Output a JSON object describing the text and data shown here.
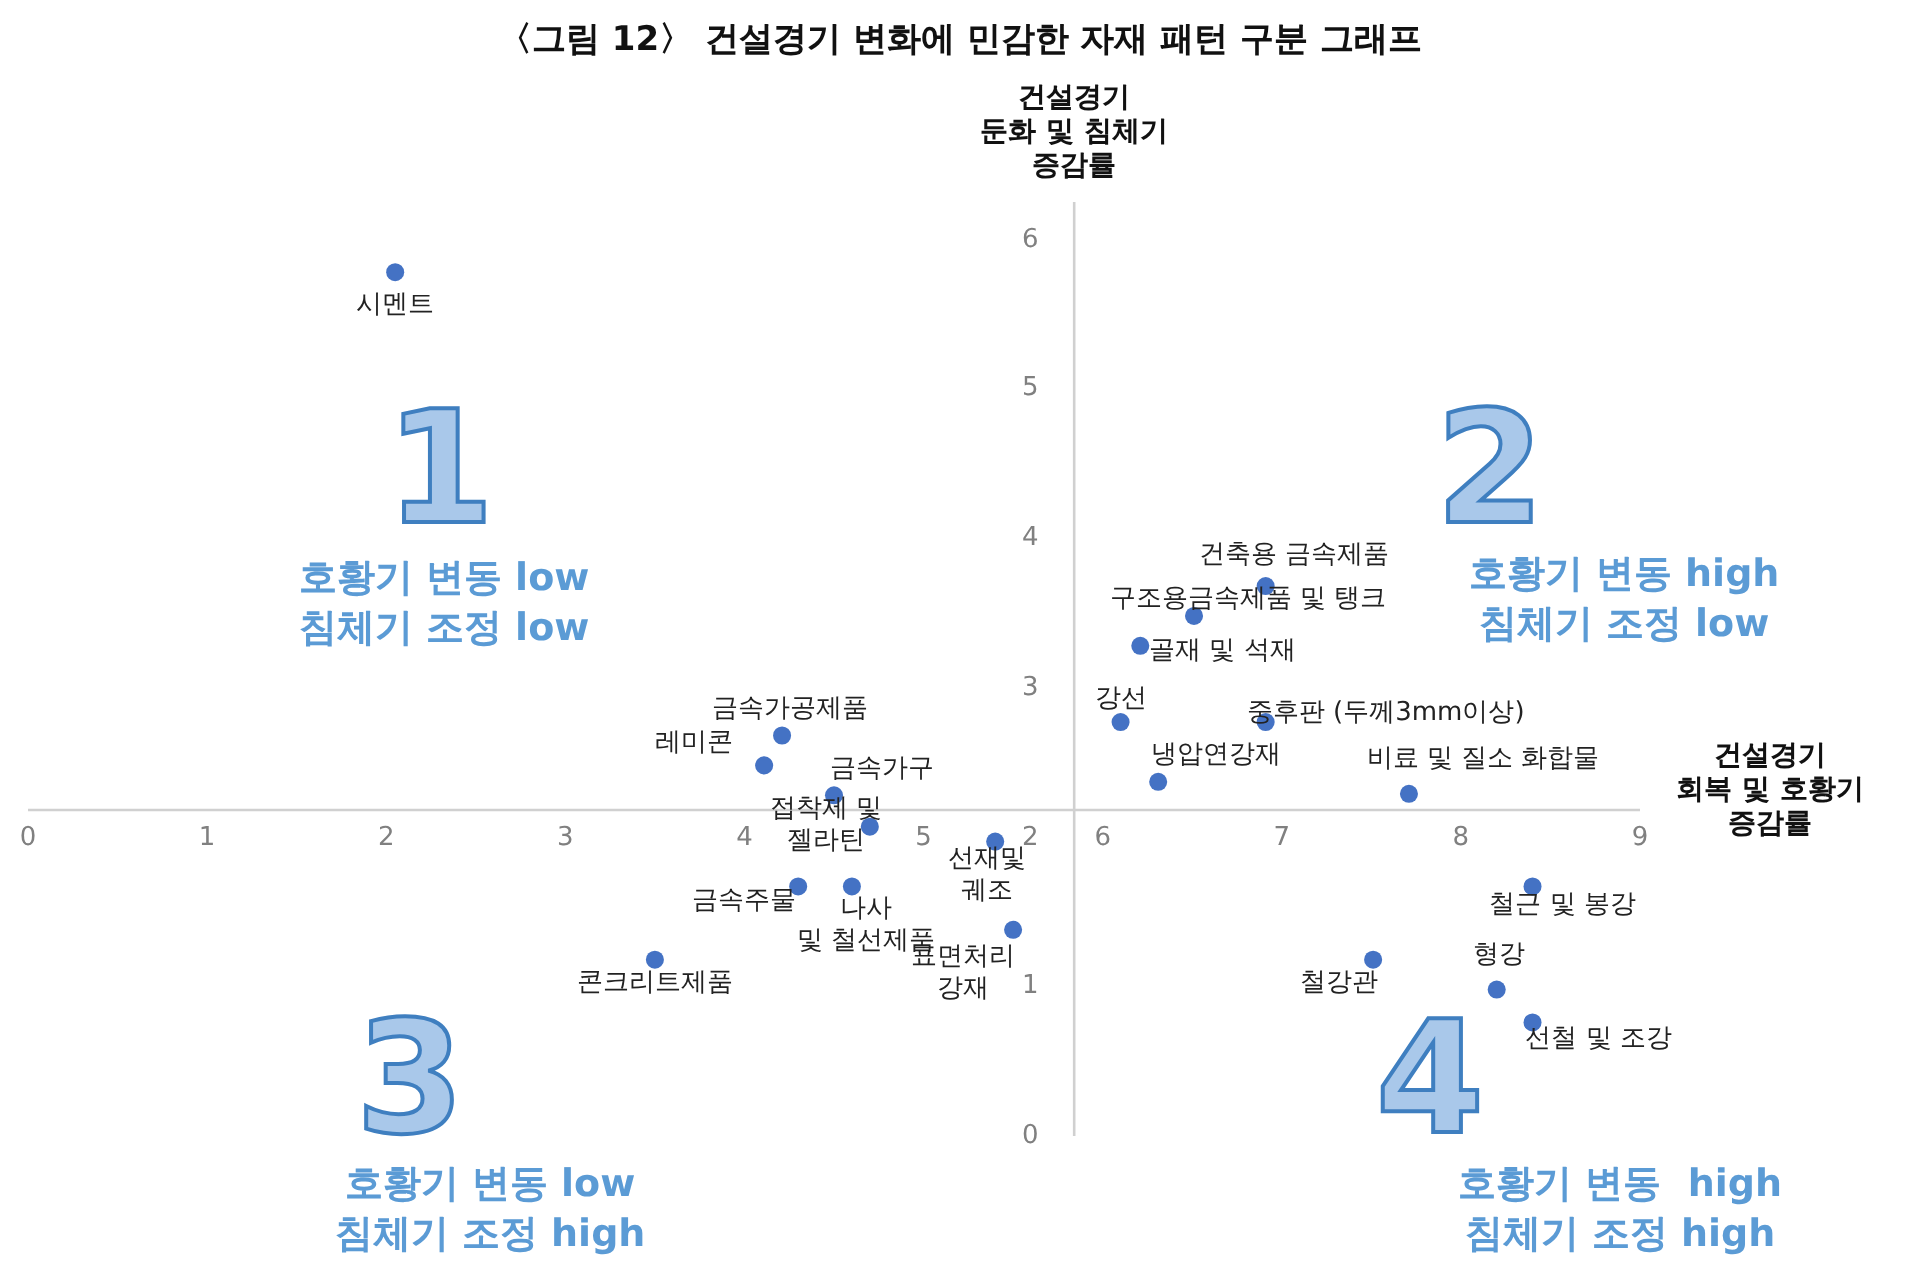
{
  "chart_data": {
    "type": "scatter",
    "title": "〈그림 12〉 건설경기 변화에 민감한 자재 패턴 구분 그래프",
    "xlabel": "건설경기\n회복 및 호황기\n증감률",
    "ylabel": "건설경기\n둔화 및 침체기\n증감률",
    "x": [
      2.05,
      6.91,
      6.51,
      6.21,
      6.1,
      6.91,
      6.31,
      7.71,
      8.4,
      7.51,
      8.2,
      8.4,
      4.21,
      4.11,
      4.5,
      4.7,
      5.4,
      4.3,
      4.6,
      5.5,
      3.5
    ],
    "series": [
      {
        "color": "#4472c4",
        "values": [
          5.78,
          3.68,
          3.48,
          3.28,
          2.77,
          2.77,
          2.37,
          2.29,
          1.67,
          1.18,
          0.98,
          0.76,
          2.68,
          2.48,
          2.28,
          2.07,
          1.97,
          1.67,
          1.67,
          1.38,
          1.18
        ]
      }
    ],
    "xlim": [
      0,
      9
    ],
    "ylim": [
      0,
      6.25
    ],
    "xticks": [
      0,
      1,
      2,
      3,
      4,
      5,
      6,
      7,
      8,
      9
    ],
    "yticks": [
      0,
      1,
      2,
      3,
      4,
      5,
      6
    ],
    "marker": "circle",
    "grid": false,
    "legend": false,
    "annotations": [
      "1",
      "호황기 변동 low\n침체기 조정 low",
      "2",
      "호황기 변동 high\n침체기 조정 low",
      "3",
      "호황기 변동 low\n침체기 조정 high",
      "4",
      "호황기 변동  high\n침체기 조정 high",
      {
        "text": "시멘트",
        "x": 2.05,
        "y": 5.78
      },
      {
        "text": "건축용 금속제품",
        "x": 6.91,
        "y": 3.68
      },
      {
        "text": "구조용금속제품 및 탱크",
        "x": 6.51,
        "y": 3.48
      },
      {
        "text": "골재 및 석재",
        "x": 6.21,
        "y": 3.28
      },
      {
        "text": "강선",
        "x": 6.1,
        "y": 2.77
      },
      {
        "text": "중후판 (두께3mm이상)",
        "x": 6.91,
        "y": 2.77
      },
      {
        "text": "냉압연강재",
        "x": 6.31,
        "y": 2.37
      },
      {
        "text": "비료 및 질소 화합물",
        "x": 7.71,
        "y": 2.29
      },
      {
        "text": "철근 및 봉강",
        "x": 8.4,
        "y": 1.67
      },
      {
        "text": "철강관",
        "x": 7.51,
        "y": 1.18
      },
      {
        "text": "형강",
        "x": 8.2,
        "y": 0.98
      },
      {
        "text": "선철 및 조강",
        "x": 8.4,
        "y": 0.76
      },
      {
        "text": "금속가공제품",
        "x": 4.21,
        "y": 2.68
      },
      {
        "text": "레미콘",
        "x": 4.11,
        "y": 2.48
      },
      {
        "text": "금속가구",
        "x": 4.5,
        "y": 2.28
      },
      {
        "text": "접착제 및\n젤라틴",
        "x": 4.7,
        "y": 2.07
      },
      {
        "text": "선재및\n궤조",
        "x": 5.4,
        "y": 1.97
      },
      {
        "text": "금속주물",
        "x": 4.3,
        "y": 1.67
      },
      {
        "text": "나사\n및 철선제품",
        "x": 4.6,
        "y": 1.67
      },
      {
        "text": "표면처리\n강재",
        "x": 5.5,
        "y": 1.38
      },
      {
        "text": "콘크리트제품",
        "x": 3.5,
        "y": 1.18
      }
    ]
  }
}
